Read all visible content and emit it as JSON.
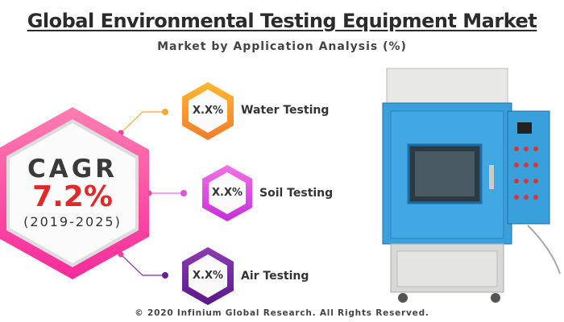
{
  "title": "Global Environmental Testing Equipment Market",
  "subtitle": "Market by Application Analysis (%)",
  "cagr": {
    "label": "CAGR",
    "value": "7.2%",
    "period": "(2019-2025)"
  },
  "segments": [
    {
      "value": "X.X%",
      "label": "Water Testing",
      "color": "#f7931e"
    },
    {
      "value": "X.X%",
      "label": "Soil Testing",
      "color": "#d63ce0"
    },
    {
      "value": "X.X%",
      "label": "Air Testing",
      "color": "#6a1b9a"
    }
  ],
  "footer": "© 2020 Infinium Global Research. All Rights Reserved."
}
